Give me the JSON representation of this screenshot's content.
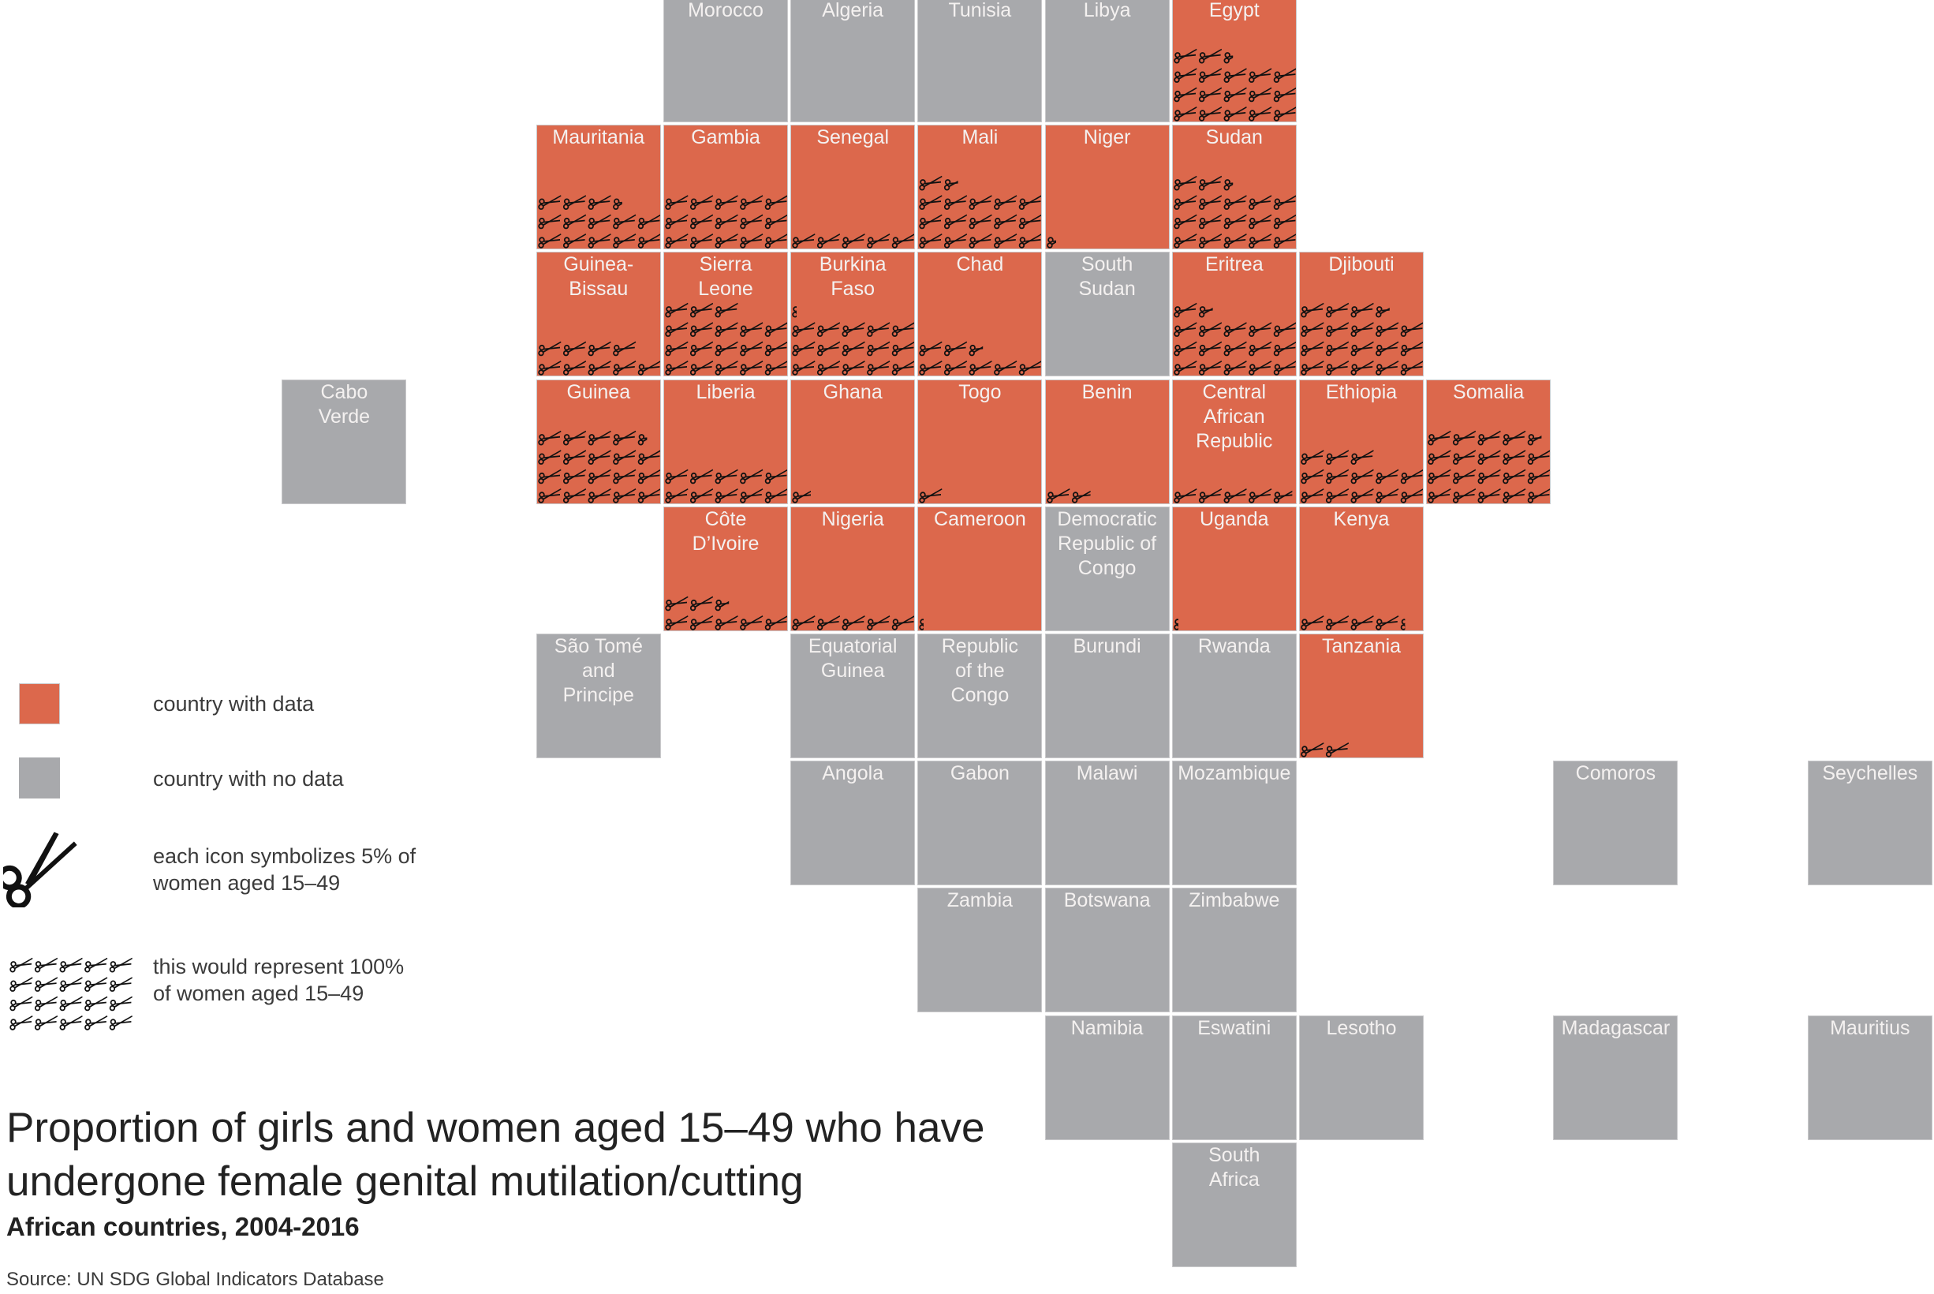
{
  "title": "Proportion of girls and women aged 15–49 who have undergone female genital mutilation/cutting",
  "subtitle": "African countries, 2004-2016",
  "source": "Source: UN SDG Global Indicators Database",
  "legend": {
    "with_data": "country with data",
    "no_data": "country with no data",
    "icon_meaning": "each icon symbolizes 5% of\nwomen aged 15–49",
    "full_meaning": "this would represent 100%\nof women aged 15–49"
  },
  "colors": {
    "data": "#dc684c",
    "nodata": "#a8a9ac",
    "icon": "#111111",
    "label": "#f4f1f0"
  },
  "icons": {
    "scissors": "scissors-icon"
  },
  "chart_data": {
    "type": "tile-map",
    "unit": "percent of women aged 15-49",
    "icon_value_percent": 5,
    "countries": [
      {
        "name": "Morocco",
        "row": 0,
        "col": 5,
        "value": null
      },
      {
        "name": "Algeria",
        "row": 0,
        "col": 6,
        "value": null
      },
      {
        "name": "Tunisia",
        "row": 0,
        "col": 7,
        "value": null
      },
      {
        "name": "Libya",
        "row": 0,
        "col": 8,
        "value": null
      },
      {
        "name": "Egypt",
        "row": 0,
        "col": 9,
        "value": 87
      },
      {
        "name": "Mauritania",
        "row": 1,
        "col": 4,
        "value": 67
      },
      {
        "name": "Gambia",
        "row": 1,
        "col": 5,
        "value": 75
      },
      {
        "name": "Senegal",
        "row": 1,
        "col": 6,
        "value": 25
      },
      {
        "name": "Mali",
        "row": 1,
        "col": 7,
        "value": 83
      },
      {
        "name": "Niger",
        "row": 1,
        "col": 8,
        "value": 2
      },
      {
        "name": "Sudan",
        "row": 1,
        "col": 9,
        "value": 87
      },
      {
        "name": "Guinea-\nBissau",
        "row": 2,
        "col": 4,
        "value": 45
      },
      {
        "name": "Sierra\nLeone",
        "row": 2,
        "col": 5,
        "value": 90
      },
      {
        "name": "Burkina\nFaso",
        "row": 2,
        "col": 6,
        "value": 76
      },
      {
        "name": "Chad",
        "row": 2,
        "col": 7,
        "value": 38
      },
      {
        "name": "South\nSudan",
        "row": 2,
        "col": 8,
        "value": null
      },
      {
        "name": "Eritrea",
        "row": 2,
        "col": 9,
        "value": 83
      },
      {
        "name": "Djibouti",
        "row": 2,
        "col": 10,
        "value": 93
      },
      {
        "name": "Cabo\nVerde",
        "row": 3,
        "col": 2,
        "value": null
      },
      {
        "name": "Guinea",
        "row": 3,
        "col": 4,
        "value": 97
      },
      {
        "name": "Liberia",
        "row": 3,
        "col": 5,
        "value": 50
      },
      {
        "name": "Ghana",
        "row": 3,
        "col": 6,
        "value": 4
      },
      {
        "name": "Togo",
        "row": 3,
        "col": 7,
        "value": 5
      },
      {
        "name": "Benin",
        "row": 3,
        "col": 8,
        "value": 9
      },
      {
        "name": "Central\nAfrican\nRepublic",
        "row": 3,
        "col": 9,
        "value": 24
      },
      {
        "name": "Ethiopia",
        "row": 3,
        "col": 10,
        "value": 65
      },
      {
        "name": "Somalia",
        "row": 3,
        "col": 11,
        "value": 98
      },
      {
        "name": "Côte\nD’Ivoire",
        "row": 4,
        "col": 5,
        "value": 38
      },
      {
        "name": "Nigeria",
        "row": 4,
        "col": 6,
        "value": 25
      },
      {
        "name": "Cameroon",
        "row": 4,
        "col": 7,
        "value": 1
      },
      {
        "name": "Democratic\nRepublic of\nCongo",
        "row": 4,
        "col": 8,
        "value": null
      },
      {
        "name": "Uganda",
        "row": 4,
        "col": 9,
        "value": 1
      },
      {
        "name": "Kenya",
        "row": 4,
        "col": 10,
        "value": 21
      },
      {
        "name": "São Tomé\nand\nPrincipe",
        "row": 5,
        "col": 4,
        "value": null
      },
      {
        "name": "Equatorial\nGuinea",
        "row": 5,
        "col": 6,
        "value": null
      },
      {
        "name": "Republic\nof the\nCongo",
        "row": 5,
        "col": 7,
        "value": null
      },
      {
        "name": "Burundi",
        "row": 5,
        "col": 8,
        "value": null
      },
      {
        "name": "Rwanda",
        "row": 5,
        "col": 9,
        "value": null
      },
      {
        "name": "Tanzania",
        "row": 5,
        "col": 10,
        "value": 10
      },
      {
        "name": "Angola",
        "row": 6,
        "col": 6,
        "value": null
      },
      {
        "name": "Gabon",
        "row": 6,
        "col": 7,
        "value": null
      },
      {
        "name": "Malawi",
        "row": 6,
        "col": 8,
        "value": null
      },
      {
        "name": "Mozambique",
        "row": 6,
        "col": 9,
        "value": null
      },
      {
        "name": "Comoros",
        "row": 6,
        "col": 12,
        "value": null
      },
      {
        "name": "Seychelles",
        "row": 6,
        "col": 14,
        "value": null
      },
      {
        "name": "Zambia",
        "row": 7,
        "col": 7,
        "value": null
      },
      {
        "name": "Botswana",
        "row": 7,
        "col": 8,
        "value": null
      },
      {
        "name": "Zimbabwe",
        "row": 7,
        "col": 9,
        "value": null
      },
      {
        "name": "Namibia",
        "row": 8,
        "col": 8,
        "value": null
      },
      {
        "name": "Eswatini",
        "row": 8,
        "col": 9,
        "value": null
      },
      {
        "name": "Lesotho",
        "row": 8,
        "col": 10,
        "value": null
      },
      {
        "name": "Madagascar",
        "row": 8,
        "col": 12,
        "value": null
      },
      {
        "name": "Mauritius",
        "row": 8,
        "col": 14,
        "value": null
      },
      {
        "name": "South\nAfrica",
        "row": 9,
        "col": 9,
        "value": null
      }
    ]
  }
}
